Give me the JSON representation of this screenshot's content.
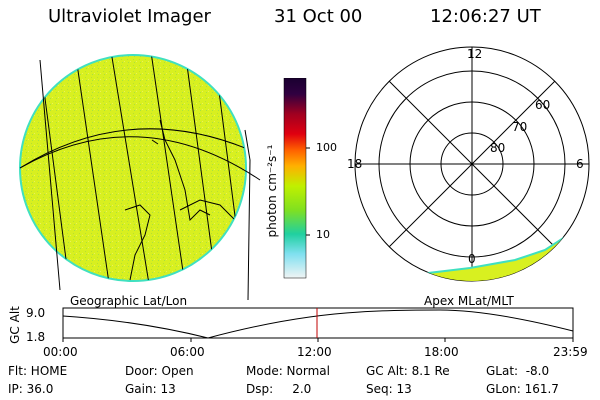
{
  "header": {
    "title": "Ultraviolet Imager",
    "date": "31 Oct 00",
    "time": "12:06:27 UT"
  },
  "colorbar": {
    "unit_label": "photon cm⁻²s⁻¹",
    "tick_labels": [
      "100",
      "10"
    ]
  },
  "polar_plot": {
    "hour_labels": [
      "12",
      "18",
      "6",
      "0"
    ],
    "lat_labels": [
      "60",
      "70",
      "80"
    ]
  },
  "map_labels": {
    "left": "Geographic Lat/Lon",
    "right": "Apex MLat/MLT"
  },
  "altitude_plot": {
    "ylabel": "GC Alt",
    "y_ticks": [
      "9.0",
      "1.8"
    ],
    "x_ticks": [
      "00:00",
      "06:00",
      "12:00",
      "18:00",
      "23:59"
    ],
    "current_time_marker": "12:06"
  },
  "info": {
    "flt": "Flt: HOME",
    "ip": "IP: 36.0",
    "door": "Door: Open",
    "gain": "Gain: 13",
    "mode": "Mode: Normal",
    "dsp": "Dsp:     2.0",
    "gcalt": "GC Alt: 8.1 Re",
    "seq": "Seq: 13",
    "glat": "GLat:  -8.0",
    "glon": "GLon: 161.7"
  },
  "colors": {
    "image_fill": "#d8f020",
    "image_edge": "#40e0c0",
    "marker": "#c00000"
  }
}
